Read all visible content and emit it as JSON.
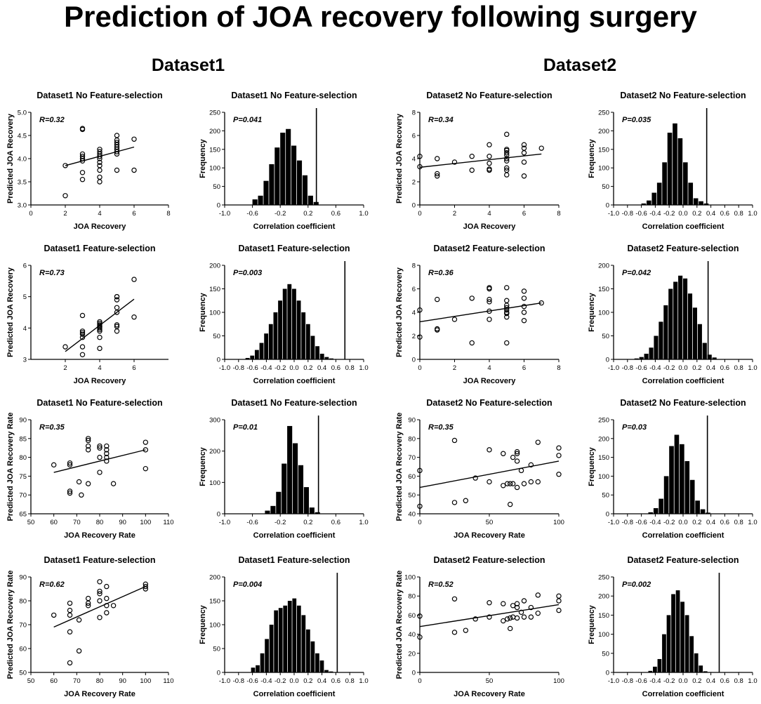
{
  "figure": {
    "title": "Prediction of JOA recovery following surgery",
    "datasets": [
      "Dataset1",
      "Dataset2"
    ]
  },
  "chart_data": [
    {
      "type": "scatter",
      "title": "Dataset1 No Feature-selection",
      "xlabel": "JOA Recovery",
      "ylabel": "Predicted JOA Recovery",
      "xlim": [
        0,
        8
      ],
      "xticks": [
        0,
        2,
        4,
        6,
        8
      ],
      "ylim": [
        3.0,
        5.0
      ],
      "yticks": [
        3.0,
        3.5,
        4.0,
        4.5,
        5.0
      ],
      "ytick_labels": [
        "3.0",
        "3.5",
        "4.0",
        "4.5",
        "5.0"
      ],
      "annotation": "R=0.32",
      "x": [
        2,
        2,
        3,
        3,
        3,
        3,
        3,
        3,
        3,
        3,
        4,
        4,
        4,
        4,
        4,
        4,
        4,
        4,
        4,
        4,
        5,
        5,
        5,
        5,
        5,
        5,
        5,
        5,
        5,
        6,
        6
      ],
      "y": [
        3.2,
        3.85,
        3.55,
        3.7,
        3.95,
        4.05,
        4.1,
        4.0,
        4.63,
        4.65,
        3.5,
        3.6,
        3.75,
        3.85,
        3.92,
        4.0,
        4.05,
        4.1,
        4.15,
        4.2,
        3.75,
        4.1,
        4.15,
        4.2,
        4.25,
        4.3,
        4.35,
        4.4,
        4.5,
        3.75,
        4.42
      ],
      "fit": [
        [
          2,
          3.85
        ],
        [
          6,
          4.25
        ]
      ]
    },
    {
      "type": "bar",
      "title": "Dataset1 No Feature-selection",
      "xlabel": "Correlation coefficient",
      "ylabel": "Frequency",
      "xlim": [
        -1,
        1
      ],
      "xticks": [
        -1.0,
        -0.6,
        -0.2,
        0.2,
        0.6,
        1.0
      ],
      "xtick_labels": [
        "-1.0",
        "-0.6",
        "-0.2",
        "0.2",
        "0.6",
        "1.0"
      ],
      "ylim": [
        0,
        250
      ],
      "yticks": [
        0,
        50,
        100,
        150,
        200,
        250
      ],
      "annotation": "P=0.041",
      "marker": 0.32,
      "bin_start": -0.6,
      "bin_width": 0.08,
      "values": [
        15,
        25,
        65,
        110,
        155,
        195,
        205,
        160,
        120,
        80,
        25,
        8
      ]
    },
    {
      "type": "scatter",
      "title": "Dataset2 No Feature-selection",
      "xlabel": "JOA Recovery",
      "ylabel": "Predicted JOA Recovery",
      "xlim": [
        0,
        8
      ],
      "xticks": [
        0,
        2,
        4,
        6,
        8
      ],
      "ylim": [
        0,
        8
      ],
      "yticks": [
        0,
        2,
        4,
        6,
        8
      ],
      "annotation": "R=0.34",
      "x": [
        0,
        0,
        1,
        1,
        1,
        2,
        3,
        3,
        4,
        4,
        4,
        4,
        4,
        5,
        5,
        5,
        5,
        5,
        5,
        5,
        5,
        5,
        5,
        6,
        6,
        6,
        6,
        6,
        7
      ],
      "y": [
        3.3,
        4.2,
        2.5,
        2.7,
        4.0,
        3.7,
        3.0,
        4.2,
        3.0,
        3.1,
        3.6,
        4.2,
        5.2,
        2.6,
        3.2,
        3.8,
        4.0,
        4.3,
        4.5,
        4.7,
        4.8,
        3.0,
        6.1,
        2.5,
        3.7,
        4.5,
        4.9,
        5.2,
        4.9
      ],
      "fit": [
        [
          0,
          3.25
        ],
        [
          7,
          4.4
        ]
      ]
    },
    {
      "type": "bar",
      "title": "Dataset2 No Feature-selection",
      "xlabel": "Correlation coefficient",
      "ylabel": "Frequency",
      "xlim": [
        -1,
        1
      ],
      "xticks": [
        -1.0,
        -0.8,
        -0.6,
        -0.4,
        -0.2,
        0.0,
        0.2,
        0.4,
        0.6,
        0.8,
        1.0
      ],
      "xtick_labels": [
        "-1.0",
        "-0.8",
        "-0.6",
        "-0.4",
        "-0.2",
        "0.0",
        "0.2",
        "0.4",
        "0.6",
        "0.8",
        "1.0"
      ],
      "ylim": [
        0,
        250
      ],
      "yticks": [
        0,
        50,
        100,
        150,
        200,
        250
      ],
      "annotation": "P=0.035",
      "marker": 0.34,
      "bin_start": -0.6,
      "bin_width": 0.075,
      "values": [
        4,
        12,
        33,
        60,
        115,
        195,
        220,
        180,
        115,
        60,
        18,
        10,
        4
      ]
    },
    {
      "type": "scatter",
      "title": "Dataset1 Feature-selection",
      "xlabel": "JOA Recovery",
      "ylabel": "Predicted JOA Recovery",
      "xlim": [
        0,
        8
      ],
      "xticks": [
        2,
        4,
        6
      ],
      "ylim": [
        3,
        6
      ],
      "yticks": [
        3,
        4,
        5,
        6
      ],
      "annotation": "R=0.73",
      "x": [
        2,
        3,
        3,
        3,
        3,
        3,
        3,
        3,
        4,
        4,
        4,
        4,
        4,
        4,
        4,
        4,
        4,
        4,
        5,
        5,
        5,
        5,
        5,
        5,
        5,
        5,
        6,
        6
      ],
      "y": [
        3.4,
        3.15,
        3.4,
        3.7,
        3.8,
        3.85,
        3.9,
        4.4,
        3.35,
        3.7,
        3.9,
        4.0,
        4.05,
        4.1,
        4.15,
        4.2,
        4.05,
        3.95,
        3.9,
        4.05,
        4.1,
        4.5,
        4.65,
        4.9,
        5.0,
        5.0,
        4.35,
        5.55
      ],
      "fit": [
        [
          2,
          3.25
        ],
        [
          6,
          4.92
        ]
      ]
    },
    {
      "type": "bar",
      "title": "Dataset1 Feature-selection",
      "xlabel": "Correlation coefficient",
      "ylabel": "Frequency",
      "xlim": [
        -1,
        1
      ],
      "xticks": [
        -1.0,
        -0.8,
        -0.6,
        -0.4,
        -0.2,
        0.0,
        0.2,
        0.4,
        0.6,
        0.8,
        1.0
      ],
      "xtick_labels": [
        "-1.0",
        "-0.8",
        "-0.6",
        "-0.4",
        "-0.2",
        "0.0",
        "0.2",
        "0.4",
        "0.6",
        "0.8",
        "1.0"
      ],
      "ylim": [
        0,
        200
      ],
      "yticks": [
        0,
        50,
        100,
        150,
        200
      ],
      "annotation": "P=0.003",
      "marker": 0.73,
      "bin_start": -0.7,
      "bin_width": 0.067,
      "values": [
        3,
        8,
        20,
        35,
        55,
        75,
        100,
        125,
        150,
        160,
        150,
        125,
        100,
        75,
        50,
        28,
        12,
        5,
        2
      ]
    },
    {
      "type": "scatter",
      "title": "Dataset2 Feature-selection",
      "xlabel": "JOA Recovery",
      "ylabel": "Predicted JOA Recovery",
      "xlim": [
        0,
        8
      ],
      "xticks": [
        0,
        2,
        4,
        6,
        8
      ],
      "ylim": [
        0,
        8
      ],
      "yticks": [
        0,
        2,
        4,
        6,
        8
      ],
      "annotation": "R=0.36",
      "x": [
        0,
        0,
        1,
        1,
        1,
        2,
        3,
        3,
        4,
        4,
        4,
        4,
        4,
        4,
        5,
        5,
        5,
        5,
        5,
        5,
        5,
        5,
        5,
        6,
        6,
        6,
        6,
        6,
        7
      ],
      "y": [
        1.9,
        4.2,
        2.5,
        2.6,
        5.1,
        3.4,
        1.4,
        5.2,
        3.4,
        4.1,
        4.9,
        5.1,
        6.0,
        6.1,
        1.4,
        3.6,
        3.9,
        4.2,
        4.4,
        4.6,
        5.0,
        4.0,
        6.1,
        3.3,
        4.0,
        4.5,
        5.2,
        5.8,
        4.8
      ],
      "fit": [
        [
          0,
          3.2
        ],
        [
          7,
          4.8
        ]
      ]
    },
    {
      "type": "bar",
      "title": "Dataset2 Feature-selection",
      "xlabel": "Correlation coefficient",
      "ylabel": "Frequency",
      "xlim": [
        -1,
        1
      ],
      "xticks": [
        -1.0,
        -0.8,
        -0.6,
        -0.4,
        -0.2,
        0.0,
        0.2,
        0.4,
        0.6,
        0.8,
        1.0
      ],
      "xtick_labels": [
        "-1.0",
        "-0.8",
        "-0.6",
        "-0.4",
        "-0.2",
        "0.0",
        "0.2",
        "0.4",
        "0.6",
        "0.8",
        "1.0"
      ],
      "ylim": [
        0,
        200
      ],
      "yticks": [
        0,
        50,
        100,
        150,
        200
      ],
      "annotation": "P=0.042",
      "marker": 0.36,
      "bin_start": -0.7,
      "bin_width": 0.07,
      "values": [
        2,
        5,
        12,
        25,
        50,
        80,
        115,
        150,
        165,
        178,
        172,
        140,
        110,
        75,
        35,
        10,
        4
      ]
    },
    {
      "type": "scatter",
      "title": "Dataset1 No Feature-selection",
      "xlabel": "JOA Recovery Rate",
      "ylabel": "Predicted JOA Recovery Rate",
      "xlim": [
        50,
        110
      ],
      "xticks": [
        50,
        60,
        70,
        80,
        90,
        100,
        110
      ],
      "ylim": [
        65,
        90
      ],
      "yticks": [
        65,
        70,
        75,
        80,
        85,
        90
      ],
      "annotation": "R=0.35",
      "x": [
        60,
        67,
        67,
        67,
        67,
        71,
        72,
        75,
        75,
        75,
        75,
        75,
        80,
        80,
        80,
        80,
        83,
        83,
        83,
        83,
        83,
        86,
        100,
        100,
        100
      ],
      "y": [
        78,
        71,
        70.5,
        78,
        78.5,
        73.5,
        70,
        73,
        82,
        83,
        84.5,
        85,
        76,
        80,
        82.5,
        83,
        79,
        80,
        81,
        82,
        83,
        73,
        77,
        82,
        84
      ],
      "fit": [
        [
          60,
          76
        ],
        [
          100,
          82
        ]
      ]
    },
    {
      "type": "bar",
      "title": "Dataset1 No Feature-selection",
      "xlabel": "Correlation coefficient",
      "ylabel": "Frequency",
      "xlim": [
        -1,
        1
      ],
      "xticks": [
        -1.0,
        -0.6,
        -0.2,
        0.2,
        0.6,
        1.0
      ],
      "xtick_labels": [
        "-1.0",
        "-0.6",
        "-0.2",
        "0.2",
        "0.6",
        "1.0"
      ],
      "ylim": [
        0,
        300
      ],
      "yticks": [
        0,
        100,
        200,
        300
      ],
      "annotation": "P=0.01",
      "marker": 0.35,
      "bin_start": -0.42,
      "bin_width": 0.08,
      "values": [
        10,
        25,
        70,
        160,
        280,
        225,
        155,
        85,
        20,
        5
      ]
    },
    {
      "type": "scatter",
      "title": "Dataset2 No Feature-selection",
      "xlabel": "JOA Recovery Rate",
      "ylabel": "Predicted JOA Recovery Rate",
      "xlim": [
        0,
        100
      ],
      "xticks": [
        0,
        50,
        100
      ],
      "ylim": [
        40,
        90
      ],
      "yticks": [
        40,
        50,
        60,
        70,
        80,
        90
      ],
      "annotation": "R=0.35",
      "x": [
        0,
        0,
        25,
        25,
        33,
        40,
        50,
        50,
        60,
        60,
        63,
        65,
        65,
        67,
        67,
        70,
        70,
        70,
        70,
        73,
        75,
        80,
        80,
        85,
        85,
        100,
        100,
        100
      ],
      "y": [
        44,
        63,
        46,
        79,
        47,
        59,
        57,
        74,
        55,
        72,
        56,
        45,
        56,
        56,
        70,
        54,
        68,
        72,
        73,
        63,
        56,
        57,
        66,
        57,
        78,
        61,
        71,
        75
      ],
      "fit": [
        [
          0,
          54
        ],
        [
          100,
          68
        ]
      ]
    },
    {
      "type": "bar",
      "title": "Dataset2 No Feature-selection",
      "xlabel": "Correlation coefficient",
      "ylabel": "Frequency",
      "xlim": [
        -1,
        1
      ],
      "xticks": [
        -1.0,
        -0.8,
        -0.6,
        -0.4,
        -0.2,
        0.0,
        0.2,
        0.4,
        0.6,
        0.8,
        1.0
      ],
      "xtick_labels": [
        "-1.0",
        "-0.8",
        "-0.6",
        "-0.4",
        "-0.2",
        "0.0",
        "0.2",
        "0.4",
        "0.6",
        "0.8",
        "1.0"
      ],
      "ylim": [
        0,
        250
      ],
      "yticks": [
        0,
        50,
        100,
        150,
        200,
        250
      ],
      "annotation": "P=0.03",
      "marker": 0.35,
      "bin_start": -0.5,
      "bin_width": 0.075,
      "values": [
        4,
        15,
        40,
        100,
        180,
        210,
        185,
        140,
        90,
        35,
        12,
        3
      ]
    },
    {
      "type": "scatter",
      "title": "Dataset1 Feature-selection",
      "xlabel": "JOA Recovery Rate",
      "ylabel": "Predicted JOA Recovery Rate",
      "xlim": [
        50,
        110
      ],
      "xticks": [
        50,
        60,
        70,
        80,
        90,
        100,
        110
      ],
      "ylim": [
        50,
        90
      ],
      "yticks": [
        50,
        60,
        70,
        80,
        90
      ],
      "annotation": "R=0.62",
      "x": [
        60,
        67,
        67,
        67,
        67,
        67,
        71,
        71,
        75,
        75,
        75,
        80,
        80,
        80,
        80,
        80,
        83,
        83,
        83,
        83,
        86,
        100,
        100,
        100
      ],
      "y": [
        74,
        54,
        67,
        74,
        76,
        79,
        59,
        72,
        78,
        79,
        81,
        73,
        80,
        83,
        84,
        88,
        75,
        78,
        81,
        86,
        78,
        85,
        86,
        87
      ],
      "fit": [
        [
          60,
          69
        ],
        [
          100,
          86
        ]
      ]
    },
    {
      "type": "bar",
      "title": "Dataset1 Feature-selection",
      "xlabel": "Correlation coefficient",
      "ylabel": "Frequency",
      "xlim": [
        -1,
        1
      ],
      "xticks": [
        -1.0,
        -0.8,
        -0.6,
        -0.4,
        -0.2,
        0.0,
        0.2,
        0.4,
        0.6,
        0.8,
        1.0
      ],
      "xtick_labels": [
        "-1.0",
        "-0.8",
        "-0.6",
        "-0.4",
        "-0.2",
        "0.0",
        "0.2",
        "0.4",
        "0.6",
        "0.8",
        "1.0"
      ],
      "ylim": [
        0,
        200
      ],
      "yticks": [
        0,
        50,
        100,
        150,
        200
      ],
      "annotation": "P=0.004",
      "marker": 0.62,
      "bin_start": -0.62,
      "bin_width": 0.066,
      "values": [
        10,
        15,
        40,
        70,
        100,
        130,
        135,
        140,
        150,
        155,
        140,
        120,
        90,
        65,
        40,
        25,
        5,
        2
      ]
    },
    {
      "type": "scatter",
      "title": "Dataset2 Feature-selection",
      "xlabel": "JOA Recovery Rate",
      "ylabel": "Predicted JOA Recovery Rate",
      "xlim": [
        0,
        100
      ],
      "xticks": [
        0,
        50,
        100
      ],
      "ylim": [
        0,
        100
      ],
      "yticks": [
        0,
        20,
        40,
        60,
        80,
        100
      ],
      "annotation": "R=0.52",
      "x": [
        0,
        0,
        25,
        25,
        33,
        40,
        50,
        50,
        60,
        60,
        63,
        65,
        65,
        67,
        67,
        70,
        70,
        70,
        73,
        75,
        75,
        80,
        80,
        85,
        85,
        100,
        100,
        100
      ],
      "y": [
        37,
        59,
        42,
        77,
        44,
        56,
        58,
        73,
        54,
        72,
        56,
        46,
        57,
        58,
        70,
        57,
        68,
        72,
        63,
        58,
        75,
        58,
        68,
        62,
        81,
        65,
        75,
        80
      ],
      "fit": [
        [
          0,
          48
        ],
        [
          100,
          71
        ]
      ]
    },
    {
      "type": "bar",
      "title": "Dataset2 Feature-selection",
      "xlabel": "Correlation coefficient",
      "ylabel": "Frequency",
      "xlim": [
        -1,
        1
      ],
      "xticks": [
        -1.0,
        -0.8,
        -0.6,
        -0.4,
        -0.2,
        0.0,
        0.2,
        0.4,
        0.6,
        0.8,
        1.0
      ],
      "xtick_labels": [
        "-1.0",
        "-0.8",
        "-0.6",
        "-0.4",
        "-0.2",
        "0.0",
        "0.2",
        "0.4",
        "0.6",
        "0.8",
        "1.0"
      ],
      "ylim": [
        0,
        250
      ],
      "yticks": [
        0,
        50,
        100,
        150,
        200,
        250
      ],
      "annotation": "P=0.002",
      "marker": 0.52,
      "bin_start": -0.5,
      "bin_width": 0.066,
      "values": [
        4,
        15,
        35,
        100,
        150,
        205,
        215,
        185,
        150,
        95,
        50,
        18,
        3,
        1
      ]
    }
  ]
}
